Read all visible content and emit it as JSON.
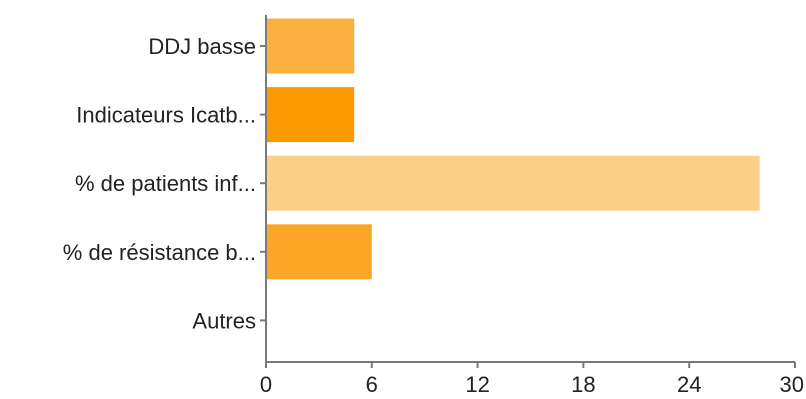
{
  "chart_data": {
    "type": "bar",
    "orientation": "horizontal",
    "categories": [
      "DDJ  basse",
      "Indicateurs Icatb...",
      "% de patients inf...",
      "% de résistance b...",
      "Autres"
    ],
    "values": [
      5,
      5,
      28,
      6,
      0
    ],
    "bar_colors": [
      "#fbb040",
      "#fb9a00",
      "#fdd08a",
      "#fba626",
      "#fba626"
    ],
    "xlim": [
      0,
      30
    ],
    "xticks": [
      "0",
      "6",
      "12",
      "18",
      "24",
      "30"
    ],
    "grid": false,
    "title": "",
    "xlabel": "",
    "ylabel": ""
  }
}
